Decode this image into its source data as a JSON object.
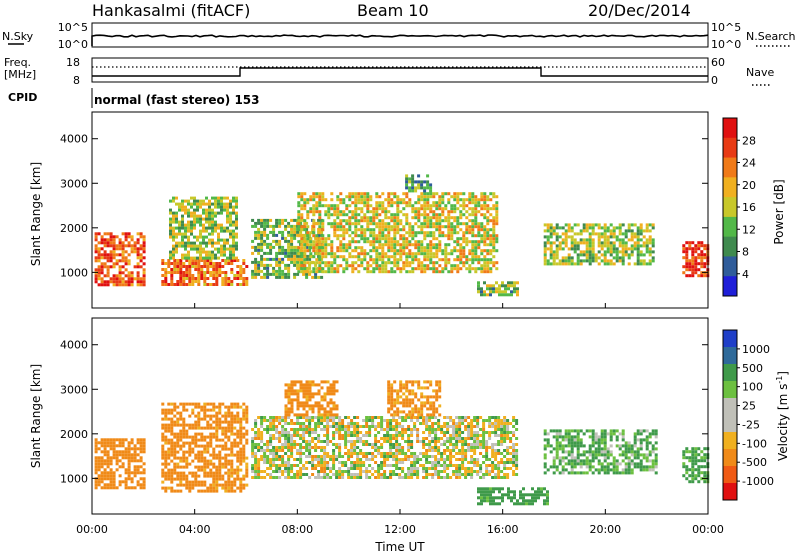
{
  "header": {
    "station": "Hankasalmi (fitACF)",
    "beam": "Beam 10",
    "date": "20/Dec/2014"
  },
  "nsky_panel": {
    "left_label": "N.Sky",
    "right_label": "N.Search",
    "left_ticks": [
      "10^5",
      "10^0"
    ],
    "right_ticks": [
      "10^5",
      "10^0"
    ]
  },
  "freq_panel": {
    "left_label_lines": [
      "Freq.",
      "[MHz]"
    ],
    "right_label": "Nave",
    "left_ticks": [
      "18",
      "8"
    ],
    "right_ticks": [
      "60",
      "0"
    ]
  },
  "cpid_panel": {
    "label": "CPID",
    "text": "normal (fast stereo) 153"
  },
  "xaxis": {
    "label": "Time UT",
    "ticks": [
      "00:00",
      "04:00",
      "08:00",
      "12:00",
      "16:00",
      "20:00",
      "00:00"
    ]
  },
  "colors": {
    "power_scale": [
      "#1f1fd8",
      "#2f5c9a",
      "#3f8a4e",
      "#52b848",
      "#c8c82a",
      "#f0b020",
      "#f07a18",
      "#e83a14",
      "#e01010"
    ],
    "velocity_scale": [
      "#e01010",
      "#f05a14",
      "#f08a18",
      "#f0b020",
      "#c0c0b8",
      "#c0c0b8",
      "#6cc040",
      "#3f9a4a",
      "#2f6a9a",
      "#1f3fc8"
    ]
  },
  "chart_data": [
    {
      "type": "heatmap",
      "panel": "power",
      "ylabel": "Slant Range [km]",
      "xlabel": "Time UT",
      "xlim": [
        0,
        24
      ],
      "ylim": [
        200,
        4600
      ],
      "yticks": [
        "1000",
        "2000",
        "3000",
        "4000"
      ],
      "colorbar_label": "Power [dB]",
      "colorbar_ticks": [
        "28",
        "24",
        "20",
        "16",
        "12",
        "8",
        "4"
      ],
      "colorbar_range": [
        0,
        30
      ],
      "regions": [
        {
          "t": [
            0.1,
            2.0
          ],
          "range": [
            700,
            1900
          ],
          "value": 24
        },
        {
          "t": [
            2.7,
            6.0
          ],
          "range": [
            700,
            1300
          ],
          "value": 22
        },
        {
          "t": [
            3.0,
            5.6
          ],
          "range": [
            1300,
            2700
          ],
          "value": 14
        },
        {
          "t": [
            6.2,
            9.0
          ],
          "range": [
            900,
            2200
          ],
          "value": 12
        },
        {
          "t": [
            8.0,
            15.8
          ],
          "range": [
            1000,
            2800
          ],
          "value": 16
        },
        {
          "t": [
            12.2,
            13.2
          ],
          "range": [
            2800,
            3200
          ],
          "value": 10
        },
        {
          "t": [
            15.0,
            16.6
          ],
          "range": [
            500,
            800
          ],
          "value": 12
        },
        {
          "t": [
            17.6,
            21.9
          ],
          "range": [
            1200,
            2100
          ],
          "value": 14
        },
        {
          "t": [
            23.0,
            24.0
          ],
          "range": [
            900,
            1700
          ],
          "value": 26
        }
      ]
    },
    {
      "type": "heatmap",
      "panel": "velocity",
      "ylabel": "Slant Range [km]",
      "xlabel": "Time UT",
      "xlim": [
        0,
        24
      ],
      "ylim": [
        200,
        4600
      ],
      "yticks": [
        "1000",
        "2000",
        "3000",
        "4000"
      ],
      "colorbar_label": "Velocity [m s^-1]",
      "colorbar_ticks": [
        "1000",
        "500",
        "100",
        "25",
        "-25",
        "-100",
        "-500",
        "-1000"
      ],
      "regions": [
        {
          "t": [
            0.1,
            2.0
          ],
          "range": [
            800,
            1900
          ],
          "value": -300
        },
        {
          "t": [
            2.7,
            6.0
          ],
          "range": [
            700,
            2700
          ],
          "value": -200
        },
        {
          "t": [
            6.2,
            16.5
          ],
          "range": [
            1000,
            2400
          ],
          "value": 0
        },
        {
          "t": [
            7.5,
            9.5
          ],
          "range": [
            2400,
            3200
          ],
          "value": -200
        },
        {
          "t": [
            11.5,
            13.5
          ],
          "range": [
            2400,
            3200
          ],
          "value": -150
        },
        {
          "t": [
            15.0,
            17.8
          ],
          "range": [
            400,
            800
          ],
          "value": 200
        },
        {
          "t": [
            17.6,
            22.0
          ],
          "range": [
            1100,
            2100
          ],
          "value": 120
        },
        {
          "t": [
            23.0,
            24.0
          ],
          "range": [
            900,
            1700
          ],
          "value": 150
        }
      ]
    }
  ]
}
